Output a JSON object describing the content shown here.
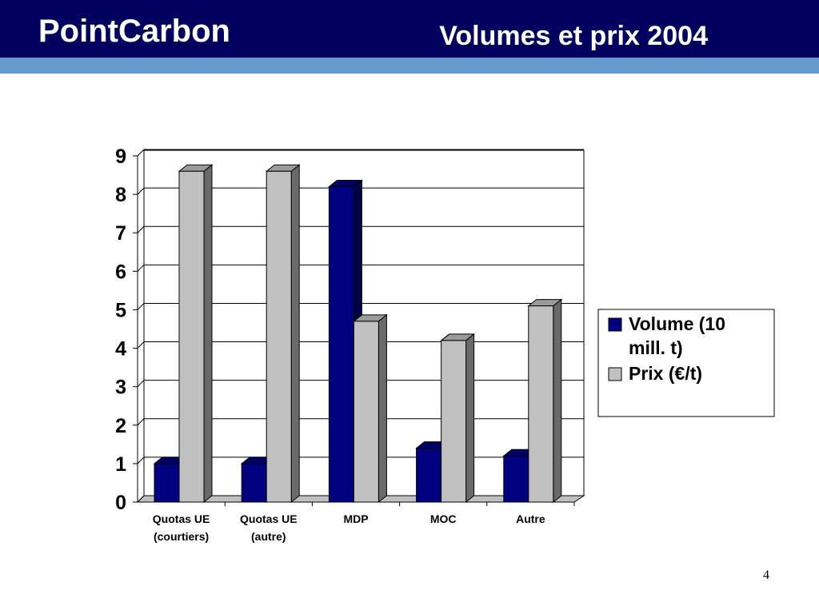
{
  "header": {
    "logo": "PointCarbon",
    "title": "Volumes et prix 2004"
  },
  "chart_data": {
    "type": "bar3d",
    "categories": [
      "Quotas UE (courtiers)",
      "Quotas UE (autre)",
      "MDP",
      "MOC",
      "Autre"
    ],
    "series": [
      {
        "name": "Volume (10 mill. t)",
        "color": "#000080",
        "values": [
          1.0,
          1.0,
          8.2,
          1.4,
          1.2
        ]
      },
      {
        "name": "Prix (€/t)",
        "color": "#c0c0c0",
        "values": [
          8.6,
          8.6,
          4.7,
          4.2,
          5.1
        ]
      }
    ],
    "ylim": [
      0,
      9
    ],
    "yticks": [
      0,
      1,
      2,
      3,
      4,
      5,
      6,
      7,
      8,
      9
    ],
    "grid": true,
    "legend": "right"
  },
  "footer": {
    "page": "4"
  }
}
